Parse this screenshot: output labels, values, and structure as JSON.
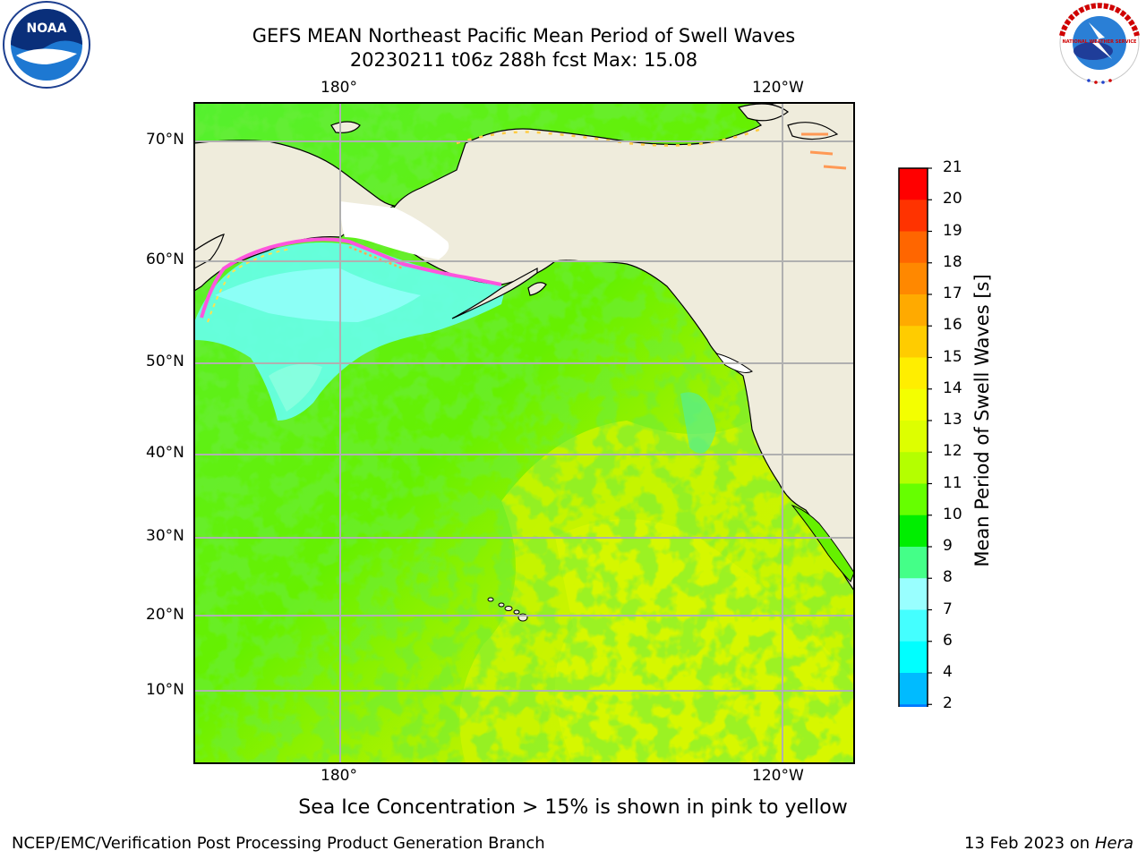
{
  "title_line1": "GEFS MEAN Northeast Pacific Mean Period of Swell Waves",
  "title_line2": "20230211 t06z 288h fcst   Max: 15.08",
  "footnote": "Sea Ice Concentration > 15% is shown in pink to yellow",
  "footer_left": "NCEP/EMC/Verification Post Processing Product Generation Branch",
  "footer_date": "13 Feb 2023 on",
  "footer_host": "Hera",
  "logos": {
    "noaa_text": "NOAA",
    "nws_text": "NATIONAL WEATHER SERVICE"
  },
  "map": {
    "lon_labels_top": [
      "180°",
      "120°W"
    ],
    "lon_labels_bottom": [
      "180°",
      "120°W"
    ],
    "lat_labels": [
      "70°N",
      "60°N",
      "50°N",
      "40°N",
      "30°N",
      "20°N",
      "10°N"
    ],
    "colors": {
      "land": "#efecdc",
      "ice_free_land_border": "#000000",
      "grid": "#b0b0b0",
      "sea_ice_pink": "#ff55dd",
      "sea_ice_yellow": "#ffe24d"
    }
  },
  "colorbar": {
    "label": "Mean Period of Swell Waves [s]",
    "ticks": [
      "21",
      "20",
      "19",
      "18",
      "17",
      "16",
      "15",
      "14",
      "13",
      "12",
      "11",
      "10",
      "9",
      "8",
      "7",
      "6",
      "4",
      "2"
    ],
    "colors_top_to_bottom": [
      "#ff0000",
      "#ff3300",
      "#ff6600",
      "#ff8800",
      "#ffaa00",
      "#ffcc00",
      "#ffee00",
      "#f4ff00",
      "#ddff00",
      "#b4ff00",
      "#66ff00",
      "#00ee00",
      "#44ff88",
      "#99ffff",
      "#44ffff",
      "#00ffff",
      "#00bbff",
      "#0077ff"
    ],
    "under_color": "#0000ff"
  }
}
